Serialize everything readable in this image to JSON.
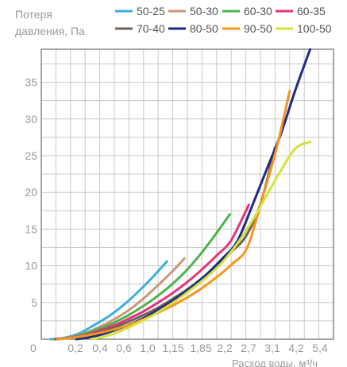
{
  "chart_data": {
    "type": "line",
    "ylabel_lines": [
      "Потеря",
      "давления, Па"
    ],
    "xlabel": "Расход воды, м³/ч",
    "yticks": [
      5,
      10,
      15,
      20,
      25,
      30,
      35
    ],
    "y_zero_label": "0",
    "xticks": [
      "0,2",
      "0,4",
      "0,6",
      "1,0",
      "1,15",
      "1,85",
      "2,2",
      "2,7",
      "3,1",
      "4,2",
      "5,4"
    ],
    "ylim": [
      0,
      39.5
    ],
    "grid": true,
    "legend_position": "top",
    "series": [
      {
        "name": "50-25",
        "color": "#3aaee0",
        "x": [
          0.65,
          1.6,
          2.6,
          3.6,
          4.6,
          5.6,
          6.6,
          7.6,
          8.6
        ],
        "y": [
          0.0,
          0.2,
          0.8,
          1.9,
          3.1,
          4.6,
          6.4,
          8.4,
          10.6
        ]
      },
      {
        "name": "50-30",
        "color": "#c9987a",
        "x": [
          0.8,
          1.8,
          2.8,
          3.8,
          4.8,
          5.8,
          6.8,
          7.8,
          8.8,
          9.8
        ],
        "y": [
          0.0,
          0.2,
          0.7,
          1.5,
          2.5,
          3.7,
          5.2,
          7.0,
          8.9,
          11.0
        ]
      },
      {
        "name": "60-30",
        "color": "#4db34d",
        "x": [
          0.9,
          1.9,
          2.9,
          3.9,
          4.9,
          5.9,
          6.9,
          7.9,
          8.9,
          9.9,
          10.9,
          11.9,
          12.9
        ],
        "y": [
          0.0,
          0.2,
          0.7,
          1.4,
          2.2,
          3.2,
          4.4,
          5.8,
          7.4,
          9.3,
          11.6,
          14.2,
          17.0
        ]
      },
      {
        "name": "60-35",
        "color": "#e5337a",
        "x": [
          1.0,
          2.0,
          3.0,
          4.0,
          5.0,
          6.0,
          7.0,
          8.0,
          9.0,
          10.0,
          11.0,
          12.0,
          13.0,
          14.2
        ],
        "y": [
          0.0,
          0.2,
          0.6,
          1.2,
          1.9,
          2.8,
          3.8,
          5.0,
          6.3,
          7.8,
          9.5,
          11.4,
          13.5,
          18.3
        ]
      },
      {
        "name": "70-40",
        "color": "#6d6258",
        "x": [
          1.0,
          2.0,
          3.0,
          4.0,
          5.0,
          6.0,
          7.0,
          8.0,
          9.0,
          10.0,
          11.0,
          12.0,
          13.0,
          14.0,
          15.0,
          16.0
        ],
        "y": [
          0.0,
          0.2,
          0.5,
          1.0,
          1.6,
          2.4,
          3.3,
          4.3,
          5.5,
          6.8,
          8.3,
          10.0,
          11.9,
          14.0,
          18.4,
          26.1
        ]
      },
      {
        "name": "80-50",
        "color": "#1e2a8a",
        "x": [
          2.4,
          3.4,
          4.4,
          5.4,
          6.4,
          7.4,
          8.4,
          9.4,
          10.4,
          11.4,
          12.4,
          13.4,
          14.4,
          15.4,
          16.4,
          17.4,
          18.4
        ],
        "y": [
          0.0,
          0.3,
          0.8,
          1.5,
          2.3,
          3.3,
          4.5,
          5.8,
          7.3,
          9.0,
          11.0,
          13.3,
          18.0,
          23.0,
          28.0,
          34.0,
          39.5
        ]
      },
      {
        "name": "90-50",
        "color": "#f7941d",
        "x": [
          1.1,
          2.1,
          3.1,
          4.1,
          5.1,
          6.1,
          7.1,
          8.1,
          9.1,
          10.1,
          11.1,
          12.1,
          13.1,
          14.1,
          15.1,
          16.1,
          17.0
        ],
        "y": [
          0.0,
          0.2,
          0.5,
          0.9,
          1.4,
          2.0,
          2.8,
          3.7,
          4.7,
          5.8,
          7.1,
          8.6,
          10.3,
          12.5,
          19.0,
          26.0,
          33.8
        ]
      },
      {
        "name": "100-50",
        "color": "#d4e23a",
        "x": [
          3.4,
          4.4,
          5.4,
          6.4,
          7.4,
          8.4,
          9.4,
          10.4,
          11.4,
          12.4,
          13.4,
          14.4,
          15.4,
          16.4,
          17.4,
          18.4
        ],
        "y": [
          0.0,
          0.4,
          1.1,
          2.0,
          3.0,
          4.2,
          5.5,
          7.0,
          8.6,
          10.5,
          13.0,
          16.0,
          19.5,
          23.0,
          26.0,
          26.9
        ]
      }
    ]
  }
}
